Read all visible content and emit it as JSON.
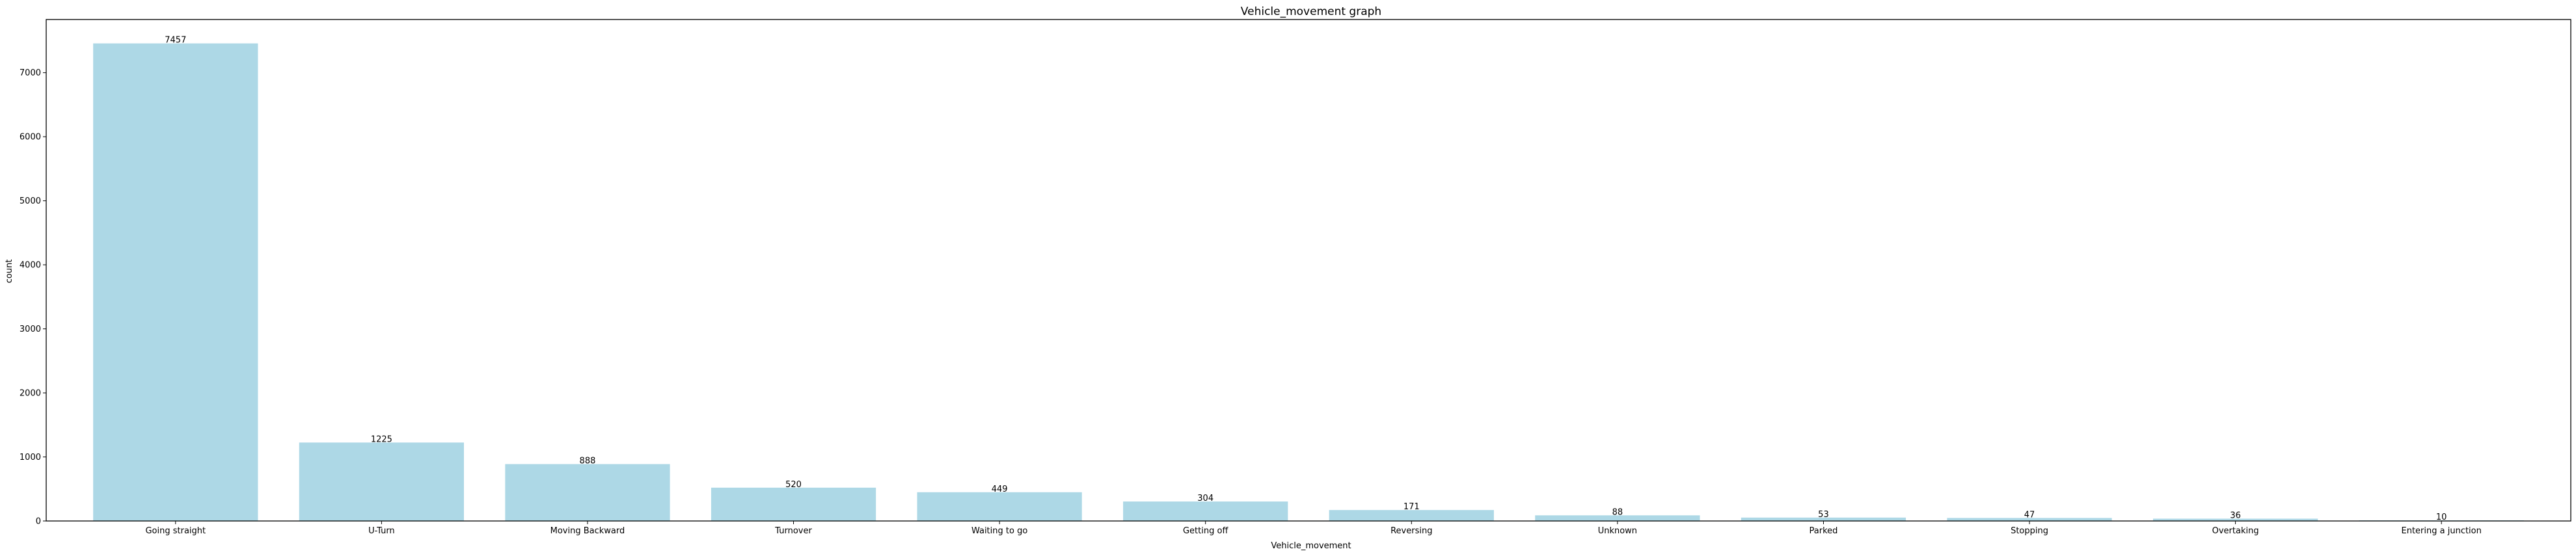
{
  "chart_data": {
    "type": "bar",
    "title": "Vehicle_movement graph",
    "xlabel": "Vehicle_movement",
    "ylabel": "count",
    "categories": [
      "Going straight",
      "U-Turn",
      "Moving Backward",
      "Turnover",
      "Waiting to go",
      "Getting off",
      "Reversing",
      "Unknown",
      "Parked",
      "Stopping",
      "Overtaking",
      "Entering a junction"
    ],
    "values": [
      7457,
      1225,
      888,
      520,
      449,
      304,
      171,
      88,
      53,
      47,
      36,
      10
    ],
    "data_labels": [
      "7457",
      "1225",
      "888",
      "520",
      "449",
      "304",
      "171",
      "88",
      "53",
      "47",
      "36",
      "10"
    ],
    "yticks": [
      0,
      1000,
      2000,
      3000,
      4000,
      5000,
      6000,
      7000
    ],
    "ytick_labels": [
      "0",
      "1000",
      "2000",
      "3000",
      "4000",
      "5000",
      "6000",
      "7000"
    ],
    "ylim": [
      0,
      7830
    ],
    "grid": false,
    "legend": "none",
    "bar_color": "#add8e6"
  }
}
